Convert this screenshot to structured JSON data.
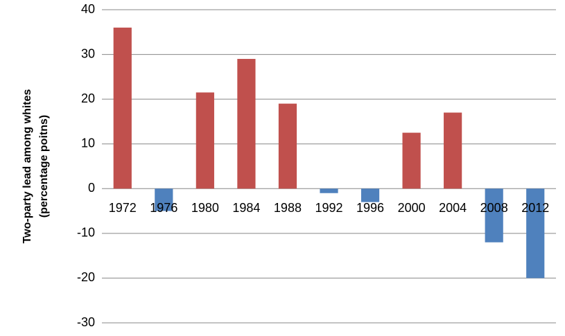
{
  "chart_data": {
    "type": "bar",
    "y_label": [
      "Two-party lead among whites",
      "(percentage poitns)"
    ],
    "categories": [
      "1972",
      "1976",
      "1980",
      "1984",
      "1988",
      "1992",
      "1996",
      "2000",
      "2004",
      "2008",
      "2012"
    ],
    "values": [
      36,
      -5,
      21.5,
      29,
      19,
      -1,
      -3,
      12.5,
      17,
      -12,
      -20
    ],
    "colors": [
      "#c0504d",
      "#4f81bd",
      "#c0504d",
      "#c0504d",
      "#c0504d",
      "#4f81bd",
      "#4f81bd",
      "#c0504d",
      "#c0504d",
      "#4f81bd",
      "#4f81bd"
    ],
    "ylim": [
      -30,
      40
    ],
    "yticks": [
      -30,
      -20,
      -10,
      0,
      10,
      20,
      30,
      40
    ],
    "grid": true
  }
}
